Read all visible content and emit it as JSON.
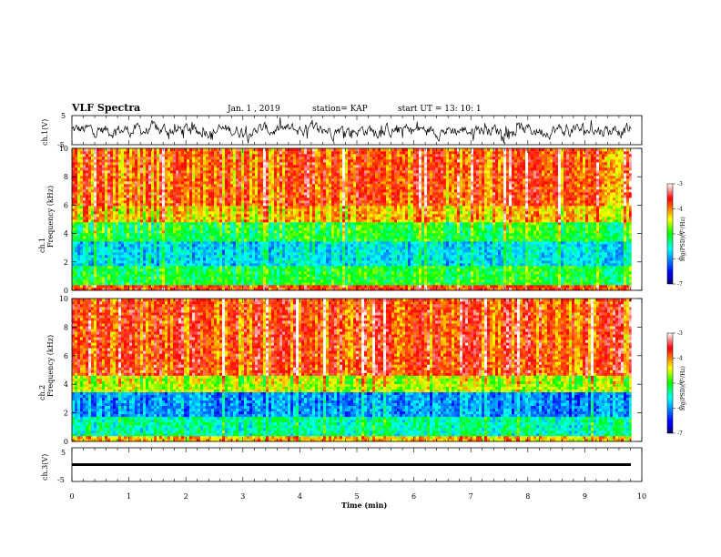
{
  "header": {
    "title": "VLF Spectra",
    "date": "Jan. 1 , 2019",
    "station": "station= KAP",
    "start_ut": "start  UT =   13: 10: 1"
  },
  "chart_data": [
    {
      "type": "line",
      "name": "ch1-waveform",
      "ylabel": "ch.1(V)",
      "ylim": [
        -5,
        5
      ],
      "ytick_labels": [
        "-5",
        "5"
      ],
      "x_range_min": [
        0,
        9.82
      ],
      "description_values": "noisy waveform, roughly between -3 and +3 V"
    },
    {
      "type": "heatmap",
      "name": "ch1-spectrogram",
      "ylabel": "ch.1\nFrequency (kHz)",
      "ylim": [
        0,
        10
      ],
      "ytick_labels": [
        "0",
        "2",
        "4",
        "6",
        "8",
        "10"
      ],
      "colorbar": {
        "label": "log(PSD)(V²/Hz)",
        "range": [
          -7,
          -3
        ],
        "tick_labels": [
          "-3",
          "-4",
          "-5",
          "-6",
          "-7"
        ],
        "colormap": [
          "#000080",
          "#0000ff",
          "#00ffff",
          "#00ff00",
          "#ffff00",
          "#ff0000",
          "#ffffff"
        ]
      },
      "bands": [
        {
          "range": [
            0,
            0.4
          ],
          "level": -3.8
        },
        {
          "range": [
            0.4,
            1.8
          ],
          "level": -5.1
        },
        {
          "range": [
            1.8,
            3.5
          ],
          "level": -5.7
        },
        {
          "range": [
            3.5,
            4.9
          ],
          "level": -5.1
        },
        {
          "range": [
            4.9,
            6.0
          ],
          "level": -4.3
        },
        {
          "range": [
            6.0,
            10.0
          ],
          "level": -3.9
        }
      ]
    },
    {
      "type": "heatmap",
      "name": "ch2-spectrogram",
      "ylabel": "ch.2\nFrequency (kHz)",
      "ylim": [
        0,
        10
      ],
      "ytick_labels": [
        "0",
        "2",
        "4",
        "6",
        "8",
        "10"
      ],
      "colorbar": {
        "label": "log(PSD)(V²/Hz)",
        "range": [
          -7,
          -3
        ],
        "tick_labels": [
          "-3",
          "-4",
          "-5",
          "-6",
          "-7"
        ],
        "colormap": [
          "#000080",
          "#0000ff",
          "#00ffff",
          "#00ff00",
          "#ffff00",
          "#ff0000",
          "#ffffff"
        ]
      },
      "bands": [
        {
          "range": [
            0,
            0.4
          ],
          "level": -4.2
        },
        {
          "range": [
            0.4,
            1.8
          ],
          "level": -5.4
        },
        {
          "range": [
            1.8,
            3.5
          ],
          "level": -6.0
        },
        {
          "range": [
            3.5,
            4.6
          ],
          "level": -4.6
        },
        {
          "range": [
            4.6,
            10.0
          ],
          "level": -3.8
        }
      ]
    },
    {
      "type": "line",
      "name": "ch3-waveform",
      "ylabel": "ch.3(V)",
      "ylim": [
        -5,
        5
      ],
      "ytick_labels": [
        "-5",
        "5"
      ],
      "constant_value": 0
    }
  ],
  "x_axis": {
    "label": "Time (min)",
    "range": [
      0,
      10
    ],
    "tick_labels": [
      "0",
      "1",
      "2",
      "3",
      "4",
      "5",
      "6",
      "7",
      "8",
      "9",
      "10"
    ],
    "data_end": 9.82
  }
}
